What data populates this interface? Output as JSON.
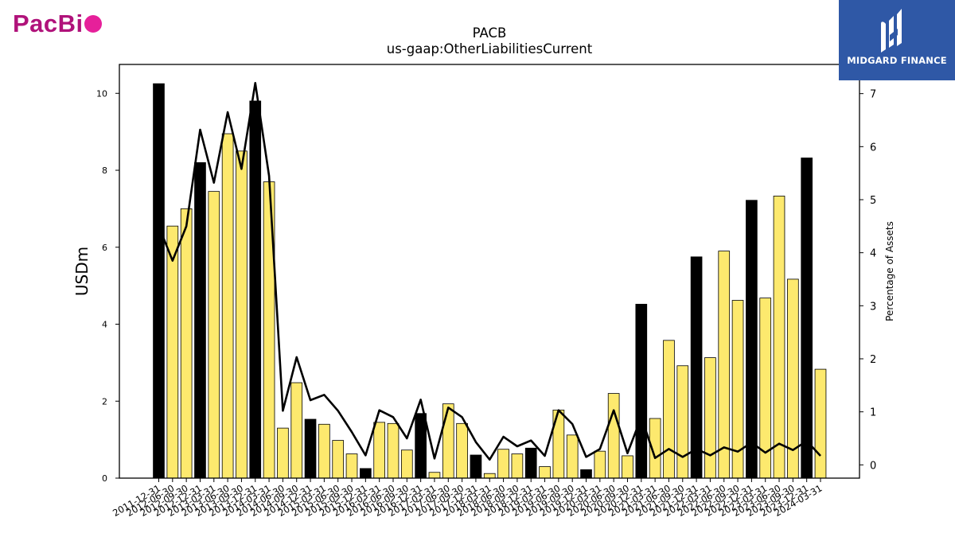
{
  "brand": {
    "logo_text": "PacBi"
  },
  "badge": {
    "text": "MIDGARD FINANCE"
  },
  "chart_data": {
    "type": "bar",
    "title": "PACB",
    "subtitle": "us-gaap:OtherLiabilitiesCurrent",
    "ylabel": "USDm",
    "y2label": "Percentage of Assets",
    "ylim": [
      0,
      10.75
    ],
    "y2lim": [
      -0.25,
      7.55
    ],
    "yticks": [
      0,
      2,
      4,
      6,
      8,
      10
    ],
    "y2ticks": [
      0,
      1,
      2,
      3,
      4,
      5,
      6,
      7
    ],
    "categories": [
      "2011-12-31",
      "2012-06-30",
      "2012-09-30",
      "2012-12-31",
      "2013-03-31",
      "2013-06-30",
      "2013-09-30",
      "2013-12-31",
      "2014-03-31",
      "2014-06-30",
      "2014-09-30",
      "2014-12-31",
      "2015-03-31",
      "2015-06-30",
      "2015-09-30",
      "2015-12-31",
      "2016-03-31",
      "2016-06-30",
      "2016-09-30",
      "2016-12-31",
      "2017-03-31",
      "2017-06-30",
      "2017-09-30",
      "2017-12-31",
      "2018-03-31",
      "2018-06-30",
      "2018-09-30",
      "2018-12-31",
      "2019-03-31",
      "2019-06-30",
      "2019-09-30",
      "2019-12-31",
      "2020-03-31",
      "2020-06-30",
      "2020-09-30",
      "2020-12-31",
      "2021-03-31",
      "2021-06-30",
      "2021-09-30",
      "2021-12-31",
      "2022-03-31",
      "2022-06-30",
      "2022-09-30",
      "2022-12-31",
      "2023-03-31",
      "2023-06-30",
      "2023-09-30",
      "2023-12-31",
      "2024-03-31"
    ],
    "series": [
      {
        "name": "USDm",
        "type": "bar",
        "values": [
          10.25,
          6.55,
          7.0,
          8.2,
          7.45,
          8.95,
          8.5,
          9.8,
          7.7,
          1.3,
          2.48,
          1.53,
          1.4,
          0.98,
          0.63,
          0.25,
          1.45,
          1.42,
          0.73,
          1.68,
          0.15,
          1.93,
          1.42,
          0.6,
          0.12,
          0.75,
          0.63,
          0.78,
          0.3,
          1.77,
          1.12,
          0.22,
          0.7,
          2.2,
          0.58,
          4.52,
          1.55,
          3.58,
          2.92,
          5.75,
          3.13,
          5.9,
          4.62,
          7.22,
          4.68,
          7.33,
          5.17,
          8.32,
          2.83
        ],
        "highlight": [
          true,
          false,
          false,
          true,
          false,
          false,
          false,
          true,
          false,
          false,
          false,
          true,
          false,
          false,
          false,
          true,
          false,
          false,
          false,
          true,
          false,
          false,
          false,
          true,
          false,
          false,
          false,
          true,
          false,
          false,
          false,
          true,
          false,
          false,
          false,
          true,
          false,
          false,
          false,
          true,
          false,
          false,
          false,
          true,
          false,
          false,
          false,
          true,
          false
        ]
      },
      {
        "name": "Percentage of Assets",
        "type": "line",
        "axis": "right",
        "values": [
          4.5,
          3.85,
          4.5,
          6.32,
          5.32,
          6.65,
          5.58,
          7.2,
          5.45,
          1.02,
          2.03,
          1.22,
          1.32,
          1.02,
          0.62,
          0.18,
          1.03,
          0.9,
          0.5,
          1.23,
          0.12,
          1.08,
          0.9,
          0.43,
          0.1,
          0.53,
          0.35,
          0.46,
          0.17,
          1.03,
          0.77,
          0.15,
          0.3,
          1.03,
          0.22,
          0.9,
          0.13,
          0.3,
          0.15,
          0.3,
          0.18,
          0.33,
          0.25,
          0.42,
          0.23,
          0.4,
          0.28,
          0.45,
          0.17
        ]
      }
    ],
    "colors": {
      "bar": "#fde96e",
      "bar_highlight": "#000000",
      "bar_edge": "#000000",
      "line": "#000000"
    }
  }
}
